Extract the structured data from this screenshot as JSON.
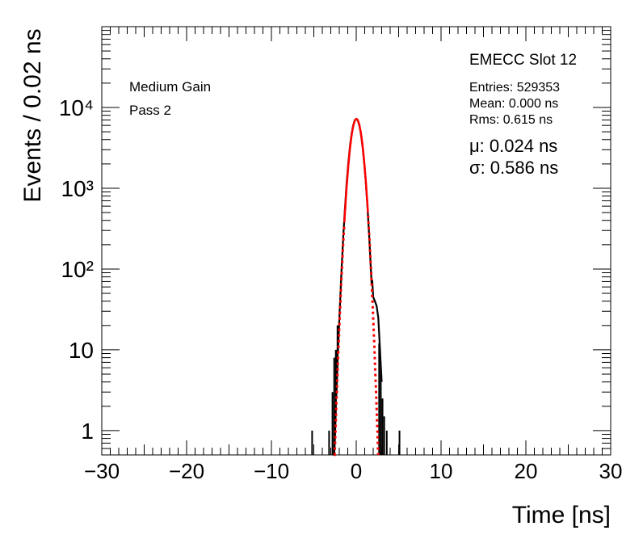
{
  "chart_data": {
    "type": "histogram",
    "xlabel": "Time [ns]",
    "ylabel": "Events / 0.02 ns",
    "xlim": [
      -30,
      30
    ],
    "ylim": [
      0.5,
      100000
    ],
    "yscale": "log",
    "x_ticks": [
      -30,
      -20,
      -10,
      0,
      10,
      20,
      30
    ],
    "x_tick_labels": [
      "−30",
      "−20",
      "−10",
      "0",
      "10",
      "20",
      "30"
    ],
    "y_ticks": [
      1,
      10,
      100,
      1000,
      10000
    ],
    "y_tick_labels": [
      "1",
      "10",
      "10²",
      "10³",
      "10⁴"
    ],
    "annotations_left": [
      "Medium Gain",
      "Pass 2"
    ],
    "title": "EMECC Slot 12",
    "stats": {
      "entries": "Entries: 529353",
      "mean": "Mean: 0.000 ns",
      "rms": "Rms: 0.615 ns"
    },
    "fit": {
      "mu_label": "μ: 0.024 ns",
      "sigma_label": "σ: 0.586 ns",
      "mu": 0.024,
      "sigma": 0.586,
      "amplitude": 7200,
      "color": "#ff0000"
    },
    "histogram": {
      "color": "#000000",
      "core_gaussian": {
        "mu": 0.0,
        "sigma": 0.59,
        "amplitude": 7200
      },
      "tail_points": [
        {
          "x": -2.4,
          "y": 10
        },
        {
          "x": -2.2,
          "y": 20
        },
        {
          "x": 1.9,
          "y": 70
        },
        {
          "x": 2.0,
          "y": 45
        },
        {
          "x": 2.2,
          "y": 40
        },
        {
          "x": 2.4,
          "y": 35
        },
        {
          "x": 2.6,
          "y": 25
        },
        {
          "x": 2.8,
          "y": 10
        },
        {
          "x": 3.0,
          "y": 4
        }
      ],
      "isolated_bins": [
        {
          "x": -5.2,
          "y": 1
        },
        {
          "x": -3.2,
          "y": 1
        },
        {
          "x": 3.6,
          "y": 1
        },
        {
          "x": 5.1,
          "y": 1
        }
      ]
    }
  }
}
